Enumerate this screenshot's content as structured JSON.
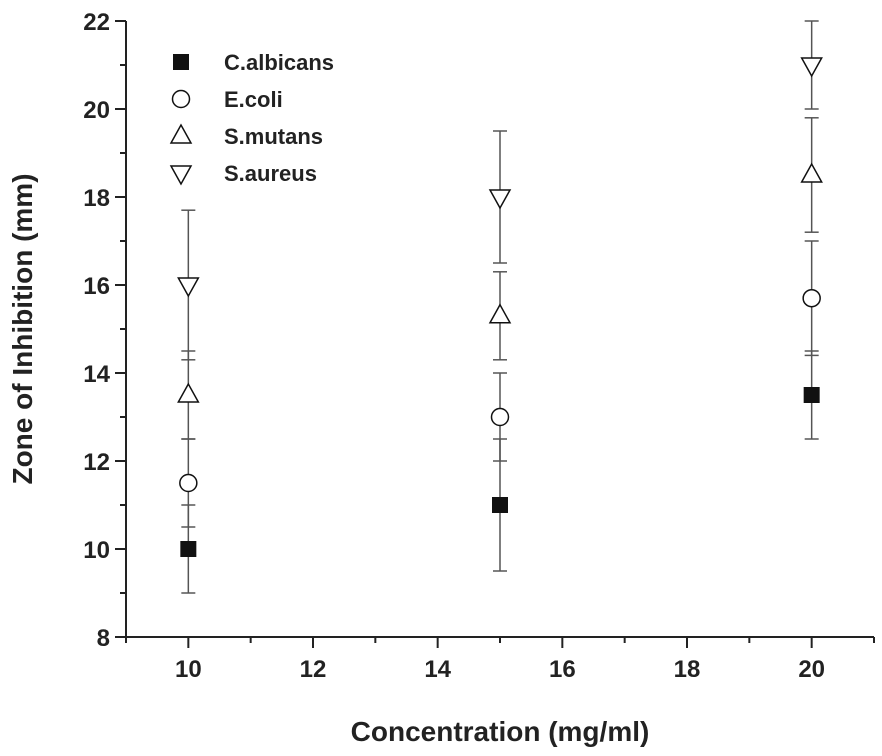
{
  "chart_data": {
    "type": "scatter",
    "title": "",
    "xlabel": "Concentration (mg/ml)",
    "ylabel": "Zone of Inhibition (mm)",
    "xlim": [
      9,
      21
    ],
    "ylim": [
      8,
      22
    ],
    "xticks": [
      10,
      12,
      14,
      16,
      18,
      20
    ],
    "yticks": [
      8,
      10,
      12,
      14,
      16,
      18,
      20,
      22
    ],
    "grid": false,
    "legend_position": "top-left",
    "x": [
      10,
      15,
      20
    ],
    "series": [
      {
        "name": "C.albicans",
        "marker": "filled-square",
        "values": [
          10,
          11,
          13.5
        ],
        "errors": [
          1.0,
          1.5,
          1.0
        ]
      },
      {
        "name": "E.coli",
        "marker": "open-circle",
        "values": [
          11.5,
          13,
          15.7
        ],
        "errors": [
          1.0,
          1.0,
          1.3
        ]
      },
      {
        "name": "S.mutans",
        "marker": "open-triangle-up",
        "values": [
          13.5,
          15.3,
          18.5
        ],
        "errors": [
          1.0,
          1.0,
          1.3
        ]
      },
      {
        "name": "S.aureus",
        "marker": "open-triangle-down",
        "values": [
          16,
          18,
          21
        ],
        "errors": [
          1.7,
          1.5,
          1.0
        ]
      }
    ],
    "colors": {
      "axis": "#222222",
      "marker": "#111111",
      "errorbar": "#555555"
    }
  }
}
